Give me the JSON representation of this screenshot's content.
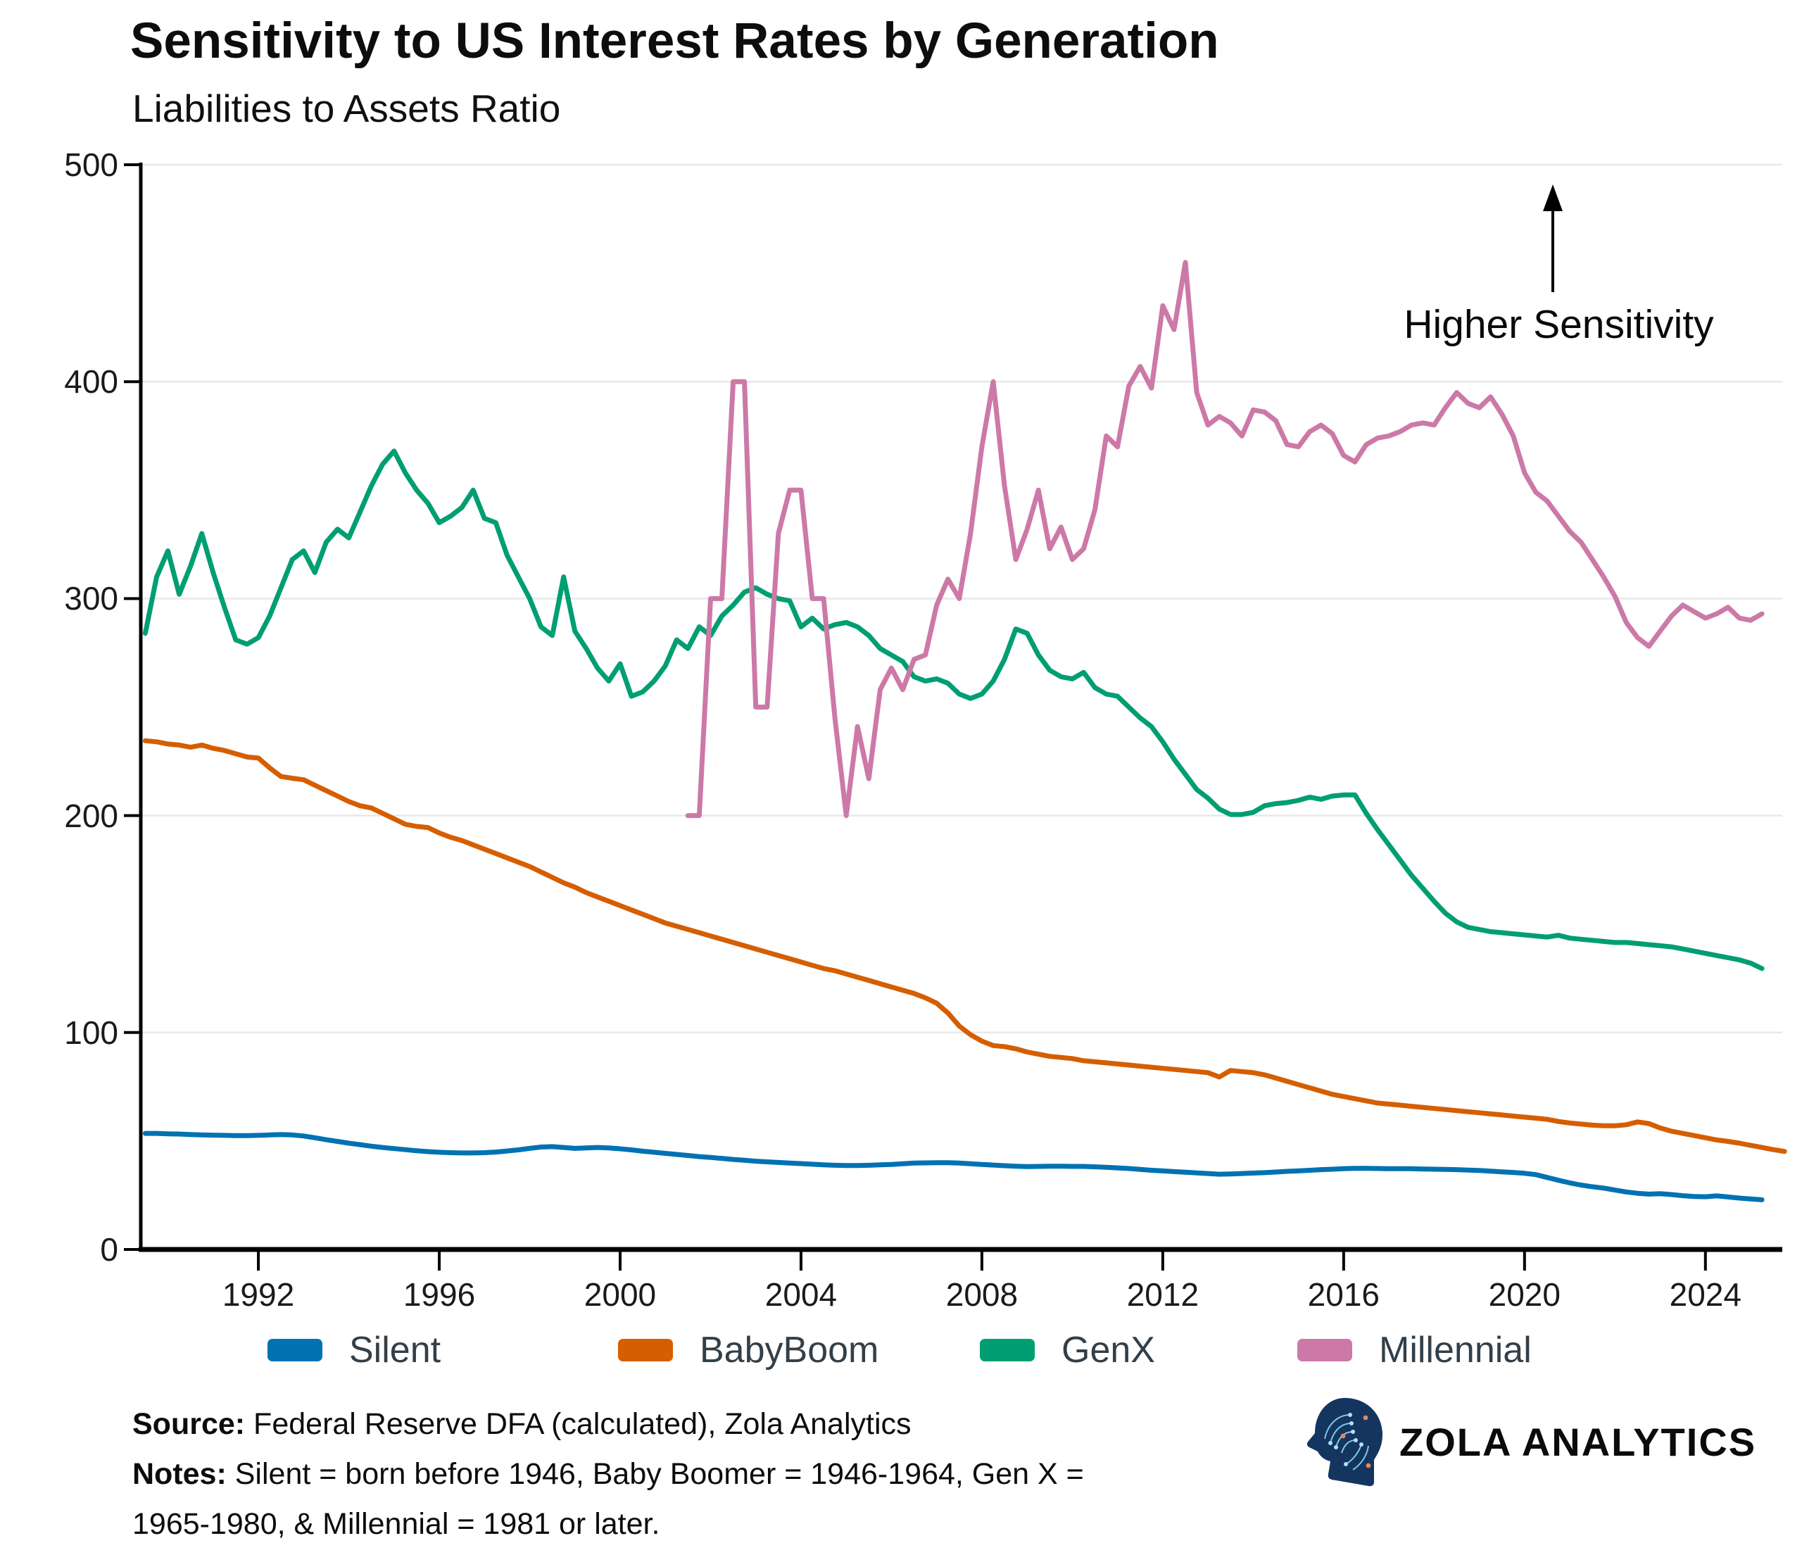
{
  "header": {
    "title": "Sensitivity to US Interest Rates by Generation",
    "subtitle": "Liabilities to Assets Ratio"
  },
  "annotation": {
    "text": "Higher Sensitivity"
  },
  "footer": {
    "source_label": "Source:",
    "source_text": " Federal Reserve DFA (calculated), Zola Analytics",
    "notes_label": "Notes:",
    "notes_line1": " Silent = born before 1946, Baby Boomer = 1946-1964, Gen X =",
    "notes_line2": "1965-1980, & Millennial = 1981 or later.",
    "brand": "ZOLA ANALYTICS"
  },
  "chart_data": {
    "type": "line",
    "title": "Sensitivity to US Interest Rates by Generation",
    "ylabel": "Liabilities to Assets Ratio",
    "xlabel": "",
    "grid": "horizontal",
    "legend_position": "bottom",
    "x_ticks": [
      1992,
      1996,
      2000,
      2004,
      2008,
      2012,
      2016,
      2020,
      2024
    ],
    "y_ticks": [
      0,
      100,
      200,
      300,
      400,
      500
    ],
    "x_range": [
      1989.4,
      2025.7
    ],
    "y_range": [
      0,
      500
    ],
    "colors": {
      "grid": "#e8e8e8",
      "axis": "#000000",
      "tick_label": "#1a1a1a"
    },
    "series": [
      {
        "name": "Silent",
        "color": "#0072B2",
        "x_start": 1989.5,
        "x_step": 0.25,
        "values": [
          53.5,
          53.5,
          53.3,
          53.2,
          53.0,
          52.8,
          52.7,
          52.6,
          52.5,
          52.5,
          52.6,
          52.8,
          53.0,
          52.8,
          52.3,
          51.5,
          50.6,
          49.8,
          49.0,
          48.3,
          47.6,
          47.0,
          46.5,
          46.0,
          45.5,
          45.1,
          44.8,
          44.6,
          44.5,
          44.5,
          44.6,
          44.9,
          45.4,
          45.9,
          46.6,
          47.2,
          47.4,
          47.0,
          46.6,
          46.8,
          47.0,
          46.8,
          46.4,
          45.9,
          45.3,
          44.8,
          44.3,
          43.8,
          43.3,
          42.8,
          42.4,
          42.0,
          41.5,
          41.1,
          40.7,
          40.4,
          40.1,
          39.8,
          39.6,
          39.3,
          39.0,
          38.8,
          38.7,
          38.7,
          38.8,
          39.0,
          39.2,
          39.5,
          39.8,
          39.9,
          40.0,
          40.0,
          39.8,
          39.5,
          39.2,
          38.9,
          38.6,
          38.4,
          38.2,
          38.3,
          38.4,
          38.4,
          38.3,
          38.3,
          38.1,
          37.9,
          37.6,
          37.3,
          36.9,
          36.5,
          36.2,
          35.9,
          35.6,
          35.3,
          35.0,
          34.7,
          34.8,
          35.0,
          35.2,
          35.4,
          35.7,
          36.0,
          36.2,
          36.5,
          36.8,
          37.0,
          37.2,
          37.4,
          37.4,
          37.3,
          37.2,
          37.2,
          37.2,
          37.1,
          37.0,
          36.9,
          36.8,
          36.6,
          36.4,
          36.1,
          35.8,
          35.5,
          35.1,
          34.5,
          33.2,
          31.9,
          30.7,
          29.7,
          28.9,
          28.3,
          27.4,
          26.5,
          25.9,
          25.5,
          25.7,
          25.3,
          24.8,
          24.4,
          24.3,
          24.7,
          24.2,
          23.7,
          23.3,
          22.9
        ]
      },
      {
        "name": "BabyBoom",
        "color": "#D55E00",
        "x_start": 1989.5,
        "x_step": 0.25,
        "values": [
          234.5,
          234,
          233,
          232.5,
          231.5,
          232.5,
          231,
          230,
          228.5,
          227,
          226.5,
          222,
          218,
          217.2,
          216.5,
          214,
          211.5,
          209,
          206.5,
          204.5,
          203.5,
          201,
          198.5,
          196,
          195,
          194.5,
          192,
          190,
          188.5,
          186.5,
          184.5,
          182.5,
          180.5,
          178.5,
          176.5,
          174,
          171.5,
          169,
          167,
          164.5,
          162.5,
          160.5,
          158.5,
          156.5,
          154.5,
          152.5,
          150.5,
          149,
          147.5,
          146,
          144.5,
          143,
          141.5,
          140,
          138.5,
          137,
          135.5,
          134,
          132.5,
          131,
          129.5,
          128.5,
          127,
          125.5,
          124,
          122.5,
          121,
          119.5,
          118,
          116,
          113.5,
          109,
          103,
          99,
          96,
          94,
          93.5,
          92.5,
          91,
          90,
          89,
          88.5,
          88,
          87,
          86.5,
          86,
          85.5,
          85,
          84.5,
          84,
          83.5,
          83,
          82.5,
          82,
          81.5,
          79.5,
          82.5,
          82,
          81.5,
          80.5,
          79,
          77.5,
          76,
          74.5,
          73,
          71.5,
          70.5,
          69.5,
          68.5,
          67.5,
          67,
          66.5,
          66,
          65.5,
          65,
          64.5,
          64,
          63.5,
          63,
          62.5,
          62,
          61.5,
          61,
          60.5,
          60,
          59,
          58.3,
          57.8,
          57.3,
          57,
          57,
          57.5,
          58.8,
          58,
          56,
          54.5,
          53.5,
          52.5,
          51.5,
          50.5,
          49.8,
          49,
          48,
          47,
          46,
          45.2
        ]
      },
      {
        "name": "GenX",
        "color": "#009E73",
        "x_start": 1989.5,
        "x_step": 0.25,
        "values": [
          284,
          310,
          322,
          302,
          315,
          330,
          312,
          296,
          281,
          279,
          282,
          292,
          305,
          318,
          322,
          312,
          326,
          332,
          328,
          340,
          352,
          362,
          368,
          358,
          350,
          344,
          335,
          338,
          342,
          350,
          337,
          335,
          320,
          310,
          300,
          287,
          283,
          310,
          285,
          277,
          268,
          262,
          270,
          255,
          257,
          262,
          269,
          281,
          277,
          287,
          283,
          292,
          297,
          303,
          305,
          302,
          300,
          299,
          287,
          291,
          286,
          288,
          289,
          287,
          283,
          277,
          274,
          271,
          264,
          262,
          263,
          261,
          256,
          254,
          256,
          262,
          272,
          286,
          284,
          274,
          267,
          264,
          263,
          266,
          259,
          256,
          255,
          250,
          245,
          241,
          234,
          226,
          219,
          212,
          208,
          203,
          200.5,
          200.5,
          201.5,
          204.5,
          205.5,
          206,
          207,
          208.5,
          207.5,
          209,
          209.5,
          209.5,
          201,
          193.5,
          186.5,
          179.5,
          172.5,
          166.5,
          160.5,
          155,
          151,
          148.5,
          147.5,
          146.5,
          146,
          145.5,
          145,
          144.5,
          144,
          144.8,
          143.5,
          143,
          142.5,
          142,
          141.5,
          141.5,
          141,
          140.5,
          140,
          139.5,
          138.5,
          137.5,
          136.5,
          135.5,
          134.5,
          133.5,
          132,
          129.5
        ]
      },
      {
        "name": "Millennial",
        "color": "#CC79A7",
        "x_start": 2001.5,
        "x_step": 0.25,
        "values": [
          200,
          200,
          300,
          300,
          400,
          400,
          250,
          250,
          330,
          350,
          350,
          300,
          300,
          245,
          200,
          241,
          217,
          258,
          268,
          258,
          272,
          274,
          297,
          309,
          300,
          330,
          370,
          400,
          352,
          318,
          332,
          350,
          323,
          333,
          318,
          323,
          341,
          375,
          370,
          398,
          407,
          397,
          435,
          424,
          455,
          395,
          380,
          384,
          381,
          375,
          387,
          386,
          382,
          371,
          370,
          377,
          380,
          376,
          366,
          363,
          371,
          374,
          375,
          377,
          380,
          381,
          380,
          388,
          395,
          390,
          388,
          393,
          385,
          375,
          358,
          349,
          345,
          338,
          331,
          326,
          318,
          310,
          301,
          289,
          282,
          278,
          285,
          292,
          297,
          294,
          291,
          293,
          296,
          291,
          290,
          293
        ]
      }
    ],
    "annotation": {
      "text": "Higher Sensitivity",
      "arrow": "up",
      "x": 2206,
      "y_top": 262,
      "y_bottom": 415
    }
  }
}
